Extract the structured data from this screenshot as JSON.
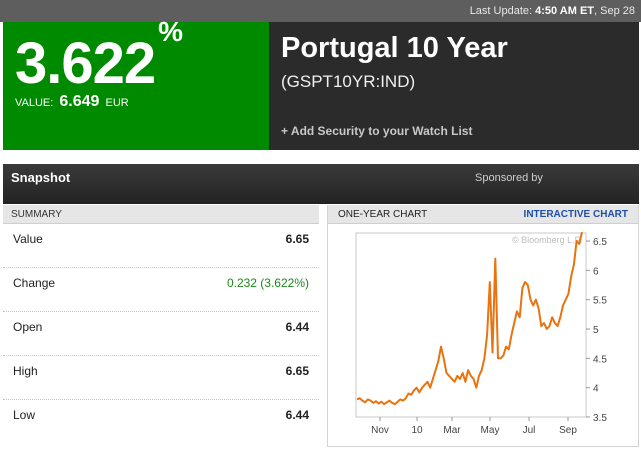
{
  "topbar": {
    "prefix": "Last Update:",
    "time": "4:50 AM ET",
    "date": ", Sep 28"
  },
  "quote": {
    "percent": "3.622",
    "percent_sign": "%",
    "value_label": "VALUE:",
    "value": "6.649",
    "currency": "EUR",
    "title": "Portugal 10 Year",
    "ticker": "(GSPT10YR:IND)",
    "watch_link": "+ Add Security to your Watch List"
  },
  "snapshot": {
    "title": "Snapshot",
    "sponsored": "Sponsored by"
  },
  "summary": {
    "heading": "SUMMARY",
    "rows": [
      {
        "label": "Value",
        "value": "6.65"
      },
      {
        "label": "Change",
        "value": "0.232 (3.622%)"
      },
      {
        "label": "Open",
        "value": "6.44"
      },
      {
        "label": "High",
        "value": "6.65"
      },
      {
        "label": "Low",
        "value": "6.44"
      }
    ]
  },
  "chart": {
    "heading": "ONE-YEAR CHART",
    "interactive_link": "INTERACTIVE CHART",
    "watermark": "© Bloomberg L.P.",
    "line_color": "#e8730f"
  },
  "chart_data": {
    "type": "line",
    "x_ticks": [
      "Nov",
      "10",
      "Mar",
      "May",
      "Jul",
      "Sep"
    ],
    "y_ticks": [
      "6.5",
      "6",
      "5.5",
      "5",
      "4.5",
      "4",
      "3.5"
    ],
    "ylim": [
      3.5,
      6.5
    ],
    "series": [
      {
        "values": [
          3.8,
          3.82,
          3.78,
          3.75,
          3.8,
          3.78,
          3.74,
          3.77,
          3.73,
          3.76,
          3.72,
          3.75,
          3.78,
          3.74,
          3.72,
          3.76,
          3.8,
          3.78,
          3.82,
          3.9,
          3.88,
          3.95,
          4.0,
          3.92,
          4.0,
          4.05,
          4.1,
          4.0,
          4.15,
          4.3,
          4.45,
          4.7,
          4.5,
          4.25,
          4.2,
          4.15,
          4.1,
          4.2,
          4.15,
          4.25,
          4.1,
          4.3,
          4.2,
          4.15,
          4.0,
          4.2,
          4.3,
          4.5,
          4.9,
          5.8,
          4.6,
          6.2,
          4.5,
          4.5,
          4.55,
          4.7,
          4.65,
          4.9,
          5.1,
          5.3,
          5.2,
          5.7,
          5.8,
          5.75,
          5.5,
          5.4,
          5.5,
          5.35,
          5.05,
          5.1,
          5.0,
          5.05,
          5.2,
          5.1,
          5.05,
          5.2,
          5.4,
          5.5,
          5.6,
          5.9,
          6.1,
          6.5,
          6.45,
          6.65
        ]
      }
    ]
  }
}
